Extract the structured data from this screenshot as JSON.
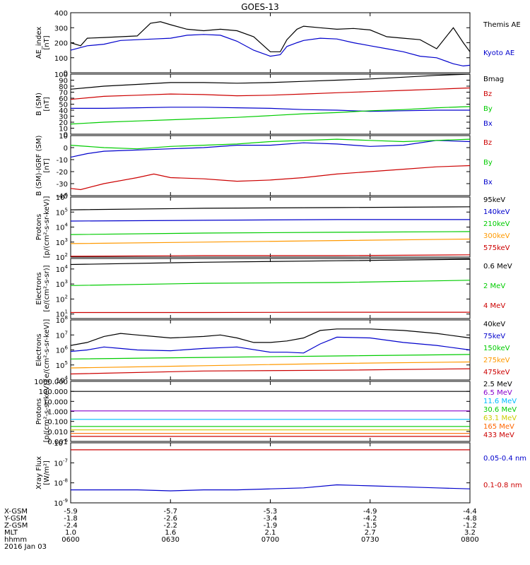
{
  "title": "GOES-13",
  "footer": {
    "rows": [
      {
        "label": "X-GSM",
        "values": [
          "-5.9",
          "-5.7",
          "-5.3",
          "-4.9",
          "-4.4"
        ]
      },
      {
        "label": "Y-GSM",
        "values": [
          "-1.8",
          "-2.6",
          "-3.4",
          "-4.2",
          "-4.8"
        ]
      },
      {
        "label": "Z-GSM",
        "values": [
          "-2.4",
          "-2.2",
          "-1.9",
          "-1.5",
          "-1.2"
        ]
      },
      {
        "label": "MLT",
        "values": [
          "1.0",
          "1.6",
          "2.1",
          "2.7",
          "3.2"
        ]
      },
      {
        "label": "hhmm",
        "values": [
          "0600",
          "0630",
          "0700",
          "0730",
          "0800"
        ]
      }
    ],
    "date": "2016 Jan 03"
  },
  "chart_data": [
    {
      "type": "line",
      "scale": "linear",
      "ylabel": [
        "AE_index",
        "[nT]"
      ],
      "ylim": [
        0,
        400
      ],
      "yticks": [
        0,
        100,
        200,
        300,
        400
      ],
      "x_range": [
        0,
        120
      ],
      "series": [
        {
          "name": "Kyoto AE",
          "color": "#0000cc",
          "x": [
            0,
            5,
            10,
            15,
            20,
            25,
            30,
            35,
            40,
            45,
            50,
            55,
            60,
            63,
            65,
            68,
            70,
            75,
            80,
            85,
            90,
            95,
            100,
            105,
            110,
            115,
            118,
            120
          ],
          "y": [
            150,
            180,
            190,
            215,
            220,
            225,
            230,
            250,
            255,
            250,
            210,
            150,
            110,
            120,
            175,
            200,
            215,
            230,
            225,
            200,
            180,
            160,
            140,
            110,
            100,
            60,
            45,
            50
          ]
        },
        {
          "name": "Themis AE",
          "color": "#000000",
          "x": [
            0,
            3,
            5,
            10,
            15,
            20,
            24,
            27,
            30,
            35,
            40,
            45,
            50,
            55,
            58,
            60,
            63,
            65,
            68,
            70,
            75,
            80,
            85,
            90,
            95,
            100,
            105,
            110,
            115,
            118,
            120
          ],
          "y": [
            200,
            180,
            230,
            235,
            240,
            245,
            330,
            340,
            320,
            290,
            280,
            290,
            280,
            240,
            180,
            140,
            140,
            220,
            290,
            310,
            300,
            290,
            295,
            285,
            240,
            230,
            220,
            160,
            300,
            200,
            140
          ]
        }
      ]
    },
    {
      "type": "line",
      "scale": "linear",
      "ylabel": [
        "B (SM)",
        "[nT]"
      ],
      "ylim": [
        0,
        100
      ],
      "yticks": [
        0,
        10,
        20,
        30,
        40,
        50,
        60,
        70,
        80,
        90,
        100
      ],
      "x_range": [
        0,
        120
      ],
      "series": [
        {
          "name": "Bx",
          "color": "#0000cc",
          "x": [
            0,
            10,
            20,
            30,
            40,
            50,
            60,
            70,
            80,
            90,
            100,
            110,
            120
          ],
          "y": [
            43,
            43,
            44,
            45,
            45,
            44,
            43,
            41,
            40,
            38,
            39,
            40,
            40
          ]
        },
        {
          "name": "By",
          "color": "#00cc00",
          "x": [
            0,
            10,
            20,
            30,
            40,
            50,
            60,
            70,
            80,
            90,
            100,
            110,
            120
          ],
          "y": [
            17,
            20,
            22,
            24,
            26,
            28,
            31,
            34,
            36,
            39,
            41,
            44,
            46
          ]
        },
        {
          "name": "Bz",
          "color": "#cc0000",
          "x": [
            0,
            10,
            20,
            30,
            40,
            50,
            60,
            70,
            80,
            90,
            100,
            110,
            120
          ],
          "y": [
            58,
            63,
            65,
            67,
            66,
            64,
            65,
            67,
            69,
            71,
            73,
            75,
            77
          ]
        },
        {
          "name": "Bmag",
          "color": "#000000",
          "x": [
            0,
            10,
            20,
            30,
            40,
            50,
            60,
            70,
            80,
            90,
            100,
            110,
            120
          ],
          "y": [
            75,
            80,
            83,
            86,
            86,
            85,
            86,
            88,
            90,
            92,
            95,
            98,
            100
          ]
        }
      ]
    },
    {
      "type": "line",
      "scale": "linear",
      "ylabel": [
        "B (SM)-IGRF (SM)",
        "[nT]"
      ],
      "ylim": [
        -40,
        10
      ],
      "yticks": [
        -40,
        -30,
        -20,
        -10,
        0,
        10
      ],
      "x_range": [
        0,
        120
      ],
      "series": [
        {
          "name": "Bx",
          "color": "#0000cc",
          "x": [
            0,
            5,
            10,
            20,
            30,
            40,
            50,
            60,
            70,
            80,
            90,
            100,
            110,
            120
          ],
          "y": [
            -8,
            -5,
            -3,
            -2,
            -1,
            0,
            2,
            2,
            4,
            3,
            1,
            2,
            6,
            5
          ]
        },
        {
          "name": "By",
          "color": "#00cc00",
          "x": [
            0,
            10,
            20,
            30,
            40,
            50,
            60,
            70,
            80,
            90,
            100,
            110,
            120
          ],
          "y": [
            2,
            0,
            -1,
            1,
            2,
            3,
            5,
            6,
            7,
            6,
            5,
            6,
            7
          ]
        },
        {
          "name": "Bz",
          "color": "#cc0000",
          "x": [
            0,
            3,
            10,
            20,
            25,
            30,
            40,
            50,
            60,
            70,
            80,
            90,
            100,
            110,
            120
          ],
          "y": [
            -34,
            -35,
            -30,
            -25,
            -22,
            -25,
            -26,
            -28,
            -27,
            -25,
            -22,
            -20,
            -18,
            -16,
            -15
          ]
        }
      ]
    },
    {
      "type": "line",
      "scale": "log",
      "ylabel": [
        "Protons",
        "[p/(cm²-s-sr-keV)]"
      ],
      "ylim": [
        2,
        6
      ],
      "yticks": [
        2,
        3,
        4,
        5,
        6
      ],
      "x_range": [
        0,
        120
      ],
      "series": [
        {
          "name": "575keV",
          "color": "#cc0000",
          "x": [
            0,
            40,
            80,
            120
          ],
          "y": [
            2.05,
            2.1,
            2.1,
            2.15
          ]
        },
        {
          "name": "300keV",
          "color": "#ff9900",
          "x": [
            0,
            40,
            80,
            120
          ],
          "y": [
            2.9,
            3.0,
            3.1,
            3.2
          ]
        },
        {
          "name": "210keV",
          "color": "#00cc00",
          "x": [
            0,
            40,
            80,
            120
          ],
          "y": [
            3.5,
            3.6,
            3.65,
            3.7
          ]
        },
        {
          "name": "140keV",
          "color": "#0000cc",
          "x": [
            0,
            40,
            80,
            120
          ],
          "y": [
            4.4,
            4.45,
            4.5,
            4.5
          ]
        },
        {
          "name": "95keV",
          "color": "#000000",
          "x": [
            0,
            40,
            80,
            120
          ],
          "y": [
            5.15,
            5.25,
            5.3,
            5.35
          ]
        }
      ]
    },
    {
      "type": "line",
      "scale": "log",
      "ylabel": [
        "Electrons",
        "[e/(cm²-s-sr)]"
      ],
      "ylim": [
        0.7,
        4.7
      ],
      "yticks": [
        1,
        2,
        3,
        4
      ],
      "x_range": [
        0,
        120
      ],
      "series": [
        {
          "name": "4 MeV",
          "color": "#cc0000",
          "x": [
            0,
            40,
            80,
            120
          ],
          "y": [
            1.1,
            1.1,
            1.12,
            1.12
          ]
        },
        {
          "name": "2 MeV",
          "color": "#00cc00",
          "x": [
            0,
            40,
            80,
            120
          ],
          "y": [
            2.9,
            3.05,
            3.1,
            3.25
          ]
        },
        {
          "name": "0.6 MeV",
          "color": "#000000",
          "x": [
            0,
            40,
            80,
            120
          ],
          "y": [
            4.3,
            4.45,
            4.55,
            4.65
          ]
        }
      ]
    },
    {
      "type": "line",
      "scale": "log",
      "ylabel": [
        "Electrons",
        "[e/(cm²-s-sr-keV)]"
      ],
      "ylim": [
        4,
        8
      ],
      "yticks": [
        4,
        5,
        6,
        7,
        8
      ],
      "x_range": [
        0,
        120
      ],
      "series": [
        {
          "name": "475keV",
          "color": "#cc0000",
          "x": [
            0,
            40,
            80,
            120
          ],
          "y": [
            4.4,
            4.6,
            4.65,
            4.75
          ]
        },
        {
          "name": "275keV",
          "color": "#ff9900",
          "x": [
            0,
            40,
            80,
            120
          ],
          "y": [
            4.8,
            4.95,
            5.1,
            5.2
          ]
        },
        {
          "name": "150keV",
          "color": "#00cc00",
          "x": [
            0,
            40,
            80,
            120
          ],
          "y": [
            5.4,
            5.5,
            5.6,
            5.7
          ]
        },
        {
          "name": "75keV",
          "color": "#0000cc",
          "x": [
            0,
            5,
            10,
            15,
            20,
            30,
            40,
            50,
            60,
            65,
            70,
            75,
            80,
            90,
            100,
            110,
            120
          ],
          "y": [
            5.9,
            6.0,
            6.2,
            6.1,
            6.0,
            5.95,
            6.1,
            6.2,
            5.85,
            5.85,
            5.8,
            6.4,
            6.85,
            6.8,
            6.5,
            6.3,
            6.0
          ]
        },
        {
          "name": "40keV",
          "color": "#000000",
          "x": [
            0,
            5,
            10,
            15,
            20,
            25,
            30,
            40,
            45,
            50,
            55,
            60,
            65,
            70,
            75,
            80,
            90,
            100,
            110,
            120
          ],
          "y": [
            6.3,
            6.5,
            6.9,
            7.1,
            7.0,
            6.9,
            6.8,
            6.9,
            7.0,
            6.8,
            6.5,
            6.5,
            6.6,
            6.8,
            7.3,
            7.4,
            7.4,
            7.3,
            7.1,
            6.8
          ]
        }
      ]
    },
    {
      "type": "line",
      "scale": "log",
      "ylabel": [
        "Protons",
        "[p/(cm²-s-sr-keV)]"
      ],
      "ylim": [
        -3,
        3
      ],
      "yticks": [
        -3,
        -2,
        -1,
        0,
        1,
        2,
        3
      ],
      "tick_labels": [
        "0.001",
        "0.010",
        "0.100",
        "1.000",
        "10.000",
        "100.000",
        "1000.000"
      ],
      "x_range": [
        0,
        120
      ],
      "series": [
        {
          "name": "433 MeV",
          "color": "#cc0000",
          "x": [
            0,
            40,
            80,
            120
          ],
          "y": [
            -2.5,
            -2.5,
            -2.5,
            -2.5
          ]
        },
        {
          "name": "165 MeV",
          "color": "#ff6600",
          "x": [
            0,
            40,
            80,
            120
          ],
          "y": [
            -2.2,
            -2.2,
            -2.2,
            -2.2
          ]
        },
        {
          "name": "63.1 MeV",
          "color": "#cccc00",
          "x": [
            0,
            40,
            80,
            120
          ],
          "y": [
            -1.85,
            -1.85,
            -1.85,
            -1.85
          ]
        },
        {
          "name": "30.6 MeV",
          "color": "#00cc00",
          "x": [
            0,
            40,
            80,
            120
          ],
          "y": [
            -1.5,
            -1.5,
            -1.5,
            -1.5
          ]
        },
        {
          "name": "11.6 MeV",
          "color": "#00bbff",
          "x": [
            0,
            40,
            80,
            120
          ],
          "y": [
            -0.8,
            -0.8,
            -0.8,
            -0.8
          ]
        },
        {
          "name": "6.5 MeV",
          "color": "#8800cc",
          "x": [
            0,
            40,
            80,
            120
          ],
          "y": [
            0.05,
            0.05,
            0.05,
            0.05
          ]
        },
        {
          "name": "2.5 MeV",
          "color": "#000000",
          "x": [
            0,
            40,
            80,
            120
          ],
          "y": [
            2.0,
            2.0,
            2.0,
            2.0
          ]
        }
      ]
    },
    {
      "type": "line",
      "scale": "log",
      "ylabel": [
        "Xray Flux",
        "[W/m²]"
      ],
      "ylim": [
        -9,
        -6
      ],
      "yticks": [
        -9,
        -8,
        -7,
        -6
      ],
      "x_range": [
        0,
        120
      ],
      "series": [
        {
          "name": "0.1-0.8 nm",
          "color": "#cc0000",
          "x": [
            0,
            40,
            80,
            120
          ],
          "y": [
            -6.35,
            -6.35,
            -6.35,
            -6.35
          ]
        },
        {
          "name": "0.05-0.4 nm",
          "color": "#0000cc",
          "x": [
            0,
            20,
            30,
            40,
            50,
            60,
            70,
            80,
            90,
            100,
            110,
            120
          ],
          "y": [
            -8.35,
            -8.35,
            -8.4,
            -8.35,
            -8.35,
            -8.3,
            -8.25,
            -8.1,
            -8.15,
            -8.2,
            -8.25,
            -8.3
          ]
        }
      ]
    }
  ]
}
